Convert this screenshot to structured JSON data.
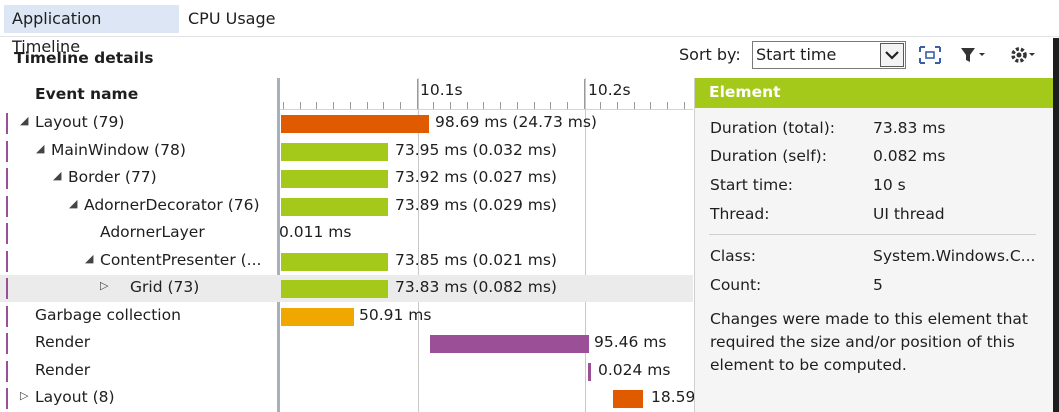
{
  "tabs": [
    {
      "label": "Application Timeline",
      "active": true
    },
    {
      "label": "CPU Usage",
      "active": false
    }
  ],
  "toolbar": {
    "title": "Timeline details",
    "sort_label": "Sort by:",
    "sort_value": "Start time",
    "icons": [
      "fit-to-view-icon",
      "filter-icon",
      "settings-icon"
    ]
  },
  "columns": {
    "event_name": "Event name"
  },
  "ruler": {
    "ticks": [
      "10.1s",
      "10.2s"
    ]
  },
  "rows": [
    {
      "name": "Layout (79)",
      "expander": "open",
      "bar_label": "98.69 ms (24.73 ms)",
      "color": "#e05a00"
    },
    {
      "name": "MainWindow (78)",
      "expander": "open",
      "bar_label": "73.95 ms (0.032 ms)",
      "color": "#a5c91a"
    },
    {
      "name": "Border (77)",
      "expander": "open",
      "bar_label": "73.92 ms (0.027 ms)",
      "color": "#a5c91a"
    },
    {
      "name": "AdornerDecorator (76)",
      "expander": "open",
      "bar_label": "73.89 ms (0.029 ms)",
      "color": "#a5c91a"
    },
    {
      "name": "AdornerLayer",
      "expander": "none",
      "bar_label": "0.011 ms",
      "color": "#a5c91a"
    },
    {
      "name": "ContentPresenter (...",
      "expander": "open",
      "bar_label": "73.85 ms (0.021 ms)",
      "color": "#a5c91a"
    },
    {
      "name": "Grid (73)",
      "expander": "closed",
      "bar_label": "73.83 ms (0.082 ms)",
      "color": "#a5c91a",
      "selected": true
    },
    {
      "name": "Garbage collection",
      "expander": "none",
      "bar_label": "50.91 ms",
      "color": "#f0a800"
    },
    {
      "name": "Render",
      "expander": "none",
      "bar_label": "95.46 ms",
      "color": "#9b4f96"
    },
    {
      "name": "Render",
      "expander": "none",
      "bar_label": "0.024 ms",
      "color": "#9b4f96"
    },
    {
      "name": "Layout (8)",
      "expander": "closed",
      "bar_label": "18.59",
      "color": "#e05a00"
    }
  ],
  "element": {
    "title": "Element",
    "props": [
      {
        "label": "Duration (total):",
        "value": "73.83 ms"
      },
      {
        "label": "Duration (self):",
        "value": "0.082 ms"
      },
      {
        "label": "Start time:",
        "value": "10 s"
      },
      {
        "label": "Thread:",
        "value": "UI thread"
      },
      {
        "label": "Class:",
        "value": "System.Windows.C..."
      },
      {
        "label": "Count:",
        "value": "5"
      }
    ],
    "description": "Changes were made to this element that required the size and/or position of this element to be computed."
  }
}
